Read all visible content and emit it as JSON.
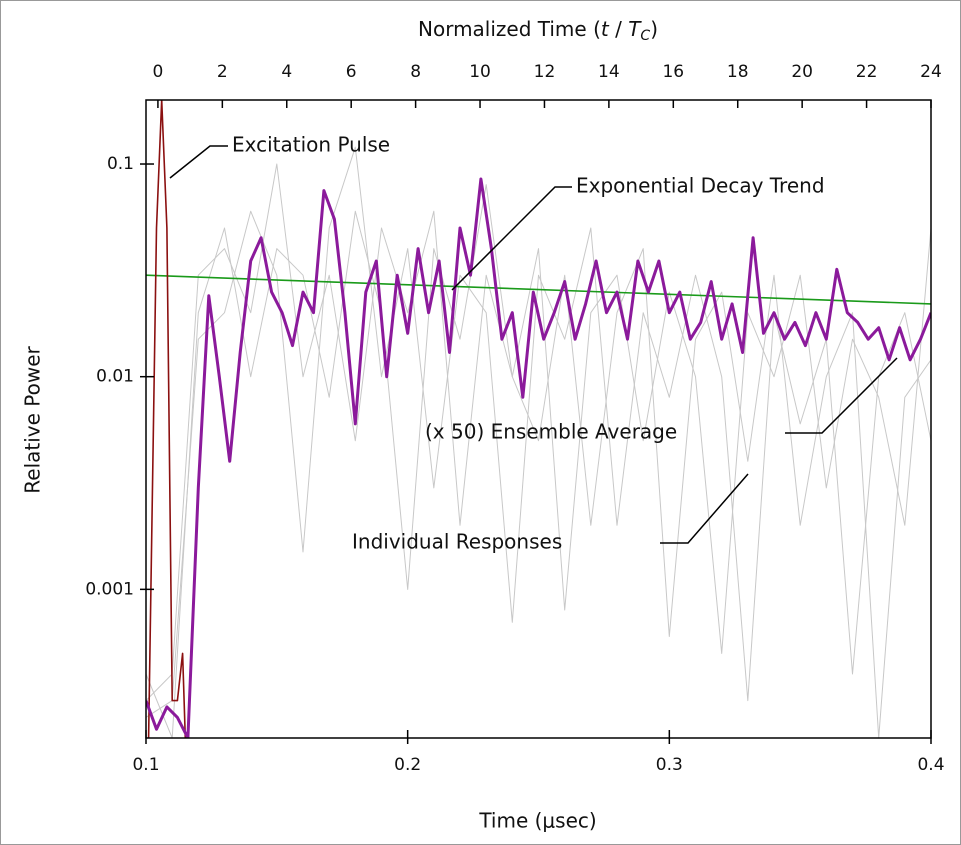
{
  "chart_data": {
    "type": "line",
    "x2_label_parts": [
      "Normalized Time (",
      "t",
      " / ",
      "T",
      "C",
      ")"
    ],
    "xlabel": "Time (μsec)",
    "ylabel": "Relative Power",
    "log_y": true,
    "grid": false,
    "xlim": [
      0.1,
      0.4
    ],
    "xticks": [
      0.1,
      0.2,
      0.3,
      0.4
    ],
    "x2lim": [
      -0.37,
      24
    ],
    "x2ticks": [
      0,
      2,
      4,
      6,
      8,
      10,
      12,
      14,
      16,
      18,
      20,
      22,
      24
    ],
    "ylim": [
      0.0002,
      0.2
    ],
    "yticks": [
      0.1,
      0.01,
      0.001
    ],
    "annotations": [
      "Excitation Pulse",
      "Exponential Decay Trend",
      "(x 50) Ensemble Average",
      "Individual Responses"
    ],
    "series": [
      {
        "color": "#c8c8c8",
        "x": [
          0.1,
          0.11,
          0.12,
          0.13,
          0.14,
          0.15,
          0.16,
          0.17,
          0.18,
          0.19,
          0.2,
          0.21,
          0.22,
          0.23,
          0.24,
          0.25,
          0.26,
          0.27,
          0.28,
          0.29,
          0.3,
          0.31,
          0.32,
          0.33,
          0.34,
          0.35,
          0.36,
          0.37,
          0.38,
          0.39,
          0.4
        ],
        "values": [
          0.0003,
          0.0004,
          0.03,
          0.04,
          0.02,
          0.1,
          0.01,
          0.03,
          0.005,
          0.05,
          0.02,
          0.06,
          0.002,
          0.03,
          0.01,
          0.04,
          0.0008,
          0.02,
          0.03,
          0.005,
          0.025,
          0.01,
          0.0005,
          0.02,
          0.01,
          0.03,
          0.003,
          0.015,
          0.008,
          0.002,
          0.05
        ]
      },
      {
        "color": "#c8c8c8",
        "x": [
          0.1,
          0.11,
          0.12,
          0.13,
          0.14,
          0.15,
          0.16,
          0.17,
          0.18,
          0.19,
          0.2,
          0.21,
          0.22,
          0.23,
          0.24,
          0.25,
          0.26,
          0.27,
          0.28,
          0.29,
          0.3,
          0.31,
          0.32,
          0.33,
          0.34,
          0.35,
          0.36,
          0.37,
          0.38,
          0.39,
          0.4
        ],
        "values": [
          0.00025,
          0.0003,
          0.015,
          0.02,
          0.06,
          0.03,
          0.0015,
          0.05,
          0.12,
          0.01,
          0.04,
          0.003,
          0.03,
          0.02,
          0.0007,
          0.03,
          0.015,
          0.05,
          0.002,
          0.02,
          0.008,
          0.03,
          0.01,
          0.0003,
          0.02,
          0.006,
          0.015,
          0.0004,
          0.01,
          0.02,
          0.005
        ]
      },
      {
        "color": "#c8c8c8",
        "x": [
          0.1,
          0.11,
          0.12,
          0.13,
          0.14,
          0.15,
          0.16,
          0.17,
          0.18,
          0.19,
          0.2,
          0.21,
          0.22,
          0.23,
          0.24,
          0.25,
          0.26,
          0.27,
          0.28,
          0.29,
          0.3,
          0.31,
          0.32,
          0.33,
          0.34,
          0.35,
          0.36,
          0.37,
          0.38,
          0.39,
          0.4
        ],
        "values": [
          0.0004,
          0.0002,
          0.02,
          0.05,
          0.01,
          0.04,
          0.03,
          0.008,
          0.06,
          0.02,
          0.001,
          0.04,
          0.015,
          0.08,
          0.01,
          0.005,
          0.03,
          0.002,
          0.02,
          0.04,
          0.0006,
          0.015,
          0.025,
          0.004,
          0.03,
          0.002,
          0.01,
          0.02,
          0.0002,
          0.008,
          0.012
        ]
      },
      {
        "color": "#1a9a1a",
        "x": [
          0.1,
          0.4
        ],
        "values": [
          0.03,
          0.022
        ]
      },
      {
        "color": "#8b1010",
        "x": [
          0.101,
          0.104,
          0.106,
          0.108,
          0.11,
          0.112,
          0.114,
          0.115,
          0.116
        ],
        "values": [
          0.0002,
          0.05,
          0.2,
          0.05,
          0.0003,
          0.0003,
          0.0005,
          0.0002,
          0.0002
        ]
      },
      {
        "color": "#8b1a9b",
        "x": [
          0.1,
          0.104,
          0.108,
          0.112,
          0.116,
          0.12,
          0.124,
          0.128,
          0.132,
          0.136,
          0.14,
          0.144,
          0.148,
          0.152,
          0.156,
          0.16,
          0.164,
          0.168,
          0.172,
          0.176,
          0.18,
          0.184,
          0.188,
          0.192,
          0.196,
          0.2,
          0.204,
          0.208,
          0.212,
          0.216,
          0.22,
          0.224,
          0.228,
          0.232,
          0.236,
          0.24,
          0.244,
          0.248,
          0.252,
          0.256,
          0.26,
          0.264,
          0.268,
          0.272,
          0.276,
          0.28,
          0.284,
          0.288,
          0.292,
          0.296,
          0.3,
          0.304,
          0.308,
          0.312,
          0.316,
          0.32,
          0.324,
          0.328,
          0.332,
          0.336,
          0.34,
          0.344,
          0.348,
          0.352,
          0.356,
          0.36,
          0.364,
          0.368,
          0.372,
          0.376,
          0.38,
          0.384,
          0.388,
          0.392,
          0.396,
          0.4
        ],
        "values": [
          0.0003,
          0.00022,
          0.00028,
          0.00025,
          0.0002,
          0.003,
          0.024,
          0.01,
          0.004,
          0.013,
          0.035,
          0.045,
          0.025,
          0.02,
          0.014,
          0.025,
          0.02,
          0.075,
          0.055,
          0.02,
          0.006,
          0.025,
          0.035,
          0.01,
          0.03,
          0.016,
          0.04,
          0.02,
          0.035,
          0.013,
          0.05,
          0.03,
          0.085,
          0.04,
          0.015,
          0.02,
          0.008,
          0.025,
          0.015,
          0.02,
          0.028,
          0.015,
          0.022,
          0.035,
          0.02,
          0.025,
          0.015,
          0.035,
          0.025,
          0.035,
          0.02,
          0.025,
          0.015,
          0.018,
          0.028,
          0.015,
          0.022,
          0.013,
          0.045,
          0.016,
          0.02,
          0.015,
          0.018,
          0.014,
          0.02,
          0.015,
          0.032,
          0.02,
          0.018,
          0.015,
          0.017,
          0.012,
          0.017,
          0.012,
          0.015,
          0.02
        ]
      }
    ]
  }
}
